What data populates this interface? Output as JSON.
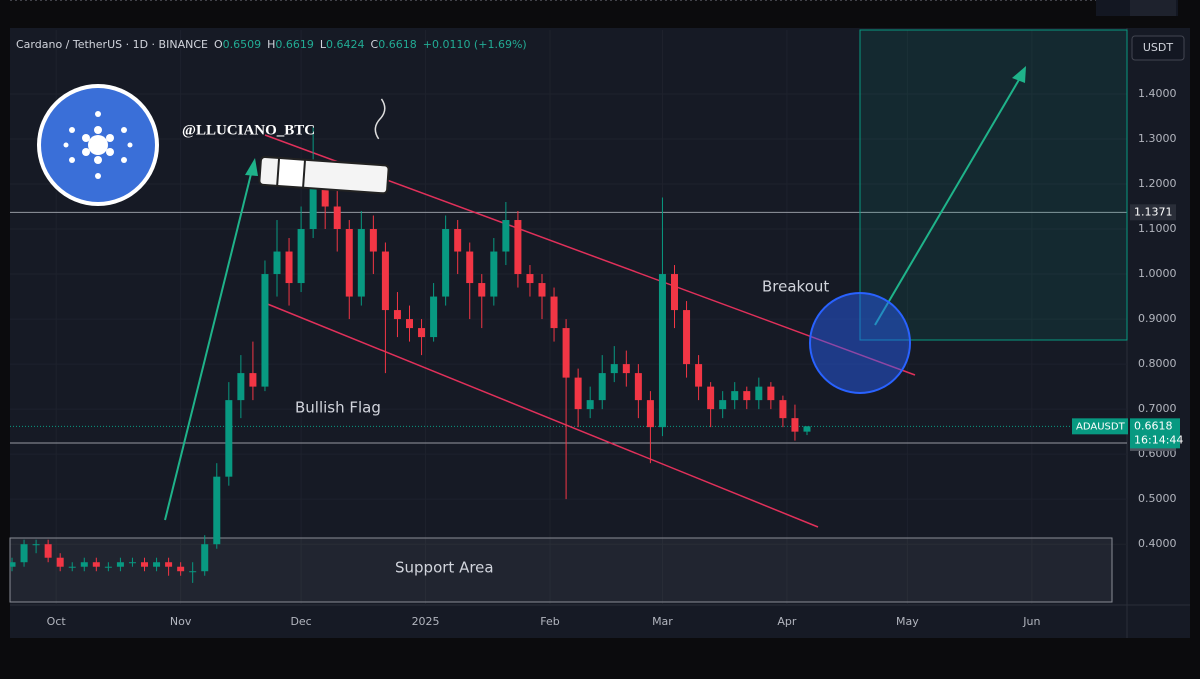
{
  "header": {
    "symbol": "Cardano / TetherUS · 1D · BINANCE",
    "ohlc": [
      {
        "label": "O",
        "value": "0.6509"
      },
      {
        "label": "H",
        "value": "0.6619"
      },
      {
        "label": "L",
        "value": "0.6424"
      },
      {
        "label": "C",
        "value": "0.6618"
      }
    ],
    "change": "+0.0110 (+1.69%)"
  },
  "chart_data": {
    "type": "candlestick",
    "currency": "USDT",
    "annotations": [
      "@LLUCIANO_BTC",
      "Bullish Flag",
      "Breakout",
      "Support Area"
    ],
    "up_color": "#089981",
    "down_color": "#f23645",
    "xlim": [
      -11.5,
      266.7
    ],
    "ylim": [
      0.265,
      1.542
    ],
    "xticks": [
      {
        "value": 0,
        "label": "Oct"
      },
      {
        "value": 31,
        "label": "Nov"
      },
      {
        "value": 61,
        "label": "Dec"
      },
      {
        "value": 92,
        "label": "2025"
      },
      {
        "value": 123,
        "label": "Feb"
      },
      {
        "value": 151,
        "label": "Mar"
      },
      {
        "value": 182,
        "label": "Apr"
      },
      {
        "value": 212,
        "label": "May"
      },
      {
        "value": 243,
        "label": "Jun"
      }
    ],
    "yticks": [
      {
        "value": 0.4,
        "label": "0.4000"
      },
      {
        "value": 0.5,
        "label": "0.5000"
      },
      {
        "value": 0.6,
        "label": "0.6000"
      },
      {
        "value": 0.7,
        "label": "0.7000"
      },
      {
        "value": 0.8,
        "label": "0.8000"
      },
      {
        "value": 0.9,
        "label": "0.9000"
      },
      {
        "value": 1.0,
        "label": "1.0000"
      },
      {
        "value": 1.1,
        "label": "1.1000"
      },
      {
        "value": 1.2,
        "label": "1.2000"
      },
      {
        "value": 1.3,
        "label": "1.3000"
      },
      {
        "value": 1.4,
        "label": "1.4000"
      }
    ],
    "high": [
      0.37,
      0.41,
      0.41,
      0.41,
      0.38,
      0.36,
      0.37,
      0.37,
      0.36,
      0.37,
      0.37,
      0.37,
      0.37,
      0.37,
      0.36,
      0.36,
      0.42,
      0.58,
      0.76,
      0.82,
      0.85,
      1.03,
      1.12,
      1.08,
      1.15,
      1.3264,
      1.25,
      1.22,
      1.12,
      1.14,
      1.13,
      1.07,
      0.96,
      0.93,
      0.9,
      0.98,
      1.13,
      1.12,
      1.07,
      1.0,
      1.08,
      1.16,
      1.14,
      1.02,
      1.0,
      0.97,
      0.9,
      0.79,
      0.75,
      0.82,
      0.84,
      0.83,
      0.8,
      0.74,
      1.17,
      1.02,
      0.94,
      0.82,
      0.76,
      0.74,
      0.76,
      0.75,
      0.77,
      0.76,
      0.73,
      0.71,
      0.6619
    ],
    "low": [
      0.34,
      0.35,
      0.38,
      0.36,
      0.34,
      0.34,
      0.34,
      0.34,
      0.34,
      0.34,
      0.35,
      0.34,
      0.34,
      0.33,
      0.33,
      0.3141,
      0.33,
      0.39,
      0.53,
      0.68,
      0.72,
      0.74,
      0.95,
      0.93,
      0.96,
      1.08,
      1.1,
      1.05,
      0.9,
      0.93,
      1.0,
      0.78,
      0.86,
      0.85,
      0.82,
      0.85,
      0.93,
      1.0,
      0.9,
      0.88,
      0.93,
      1.02,
      0.97,
      0.95,
      0.9,
      0.85,
      0.5,
      0.66,
      0.68,
      0.7,
      0.76,
      0.75,
      0.68,
      0.58,
      0.64,
      0.88,
      0.77,
      0.72,
      0.66,
      0.68,
      0.7,
      0.7,
      0.7,
      0.7,
      0.66,
      0.63,
      0.6424
    ],
    "last": {
      "label": "ADAUSDT",
      "value": 0.6618,
      "countdown": "16:14:44"
    },
    "levels": [
      1.1371,
      0.6249
    ],
    "x": [
      -11,
      -8,
      -5,
      -2,
      1,
      4,
      7,
      10,
      13,
      16,
      19,
      22,
      25,
      28,
      31,
      34,
      37,
      40,
      43,
      46,
      49,
      52,
      55,
      58,
      61,
      64,
      67,
      70,
      73,
      76,
      79,
      82,
      85,
      88,
      91,
      94,
      97,
      100,
      103,
      106,
      109,
      112,
      115,
      118,
      121,
      124,
      127,
      130,
      133,
      136,
      139,
      142,
      145,
      148,
      151,
      154,
      157,
      160,
      163,
      166,
      169,
      172,
      175,
      178,
      181,
      184,
      187
    ],
    "open": [
      0.35,
      0.36,
      0.4,
      0.4,
      0.37,
      0.35,
      0.35,
      0.36,
      0.35,
      0.35,
      0.36,
      0.36,
      0.35,
      0.36,
      0.35,
      0.34,
      0.34,
      0.4,
      0.55,
      0.72,
      0.78,
      0.75,
      1.0,
      1.05,
      0.98,
      1.1,
      1.2,
      1.15,
      1.1,
      0.95,
      1.1,
      1.05,
      0.92,
      0.9,
      0.88,
      0.86,
      0.95,
      1.1,
      1.05,
      0.98,
      0.95,
      1.05,
      1.12,
      1.0,
      0.98,
      0.95,
      0.88,
      0.77,
      0.7,
      0.72,
      0.78,
      0.8,
      0.78,
      0.72,
      0.66,
      1.0,
      0.92,
      0.8,
      0.75,
      0.7,
      0.72,
      0.74,
      0.72,
      0.75,
      0.72,
      0.68,
      0.65
    ],
    "close": [
      0.36,
      0.4,
      0.4,
      0.37,
      0.35,
      0.35,
      0.36,
      0.35,
      0.35,
      0.36,
      0.36,
      0.35,
      0.36,
      0.35,
      0.34,
      0.34,
      0.4,
      0.55,
      0.72,
      0.78,
      0.75,
      1.0,
      1.05,
      0.98,
      1.1,
      1.2,
      1.15,
      1.1,
      0.95,
      1.1,
      1.05,
      0.92,
      0.9,
      0.88,
      0.86,
      0.95,
      1.1,
      1.05,
      0.98,
      0.95,
      1.05,
      1.12,
      1.0,
      0.98,
      0.95,
      0.88,
      0.77,
      0.7,
      0.72,
      0.78,
      0.8,
      0.78,
      0.72,
      0.66,
      1.0,
      0.92,
      0.8,
      0.75,
      0.7,
      0.72,
      0.74,
      0.72,
      0.75,
      0.72,
      0.68,
      0.65,
      0.6618
    ]
  }
}
